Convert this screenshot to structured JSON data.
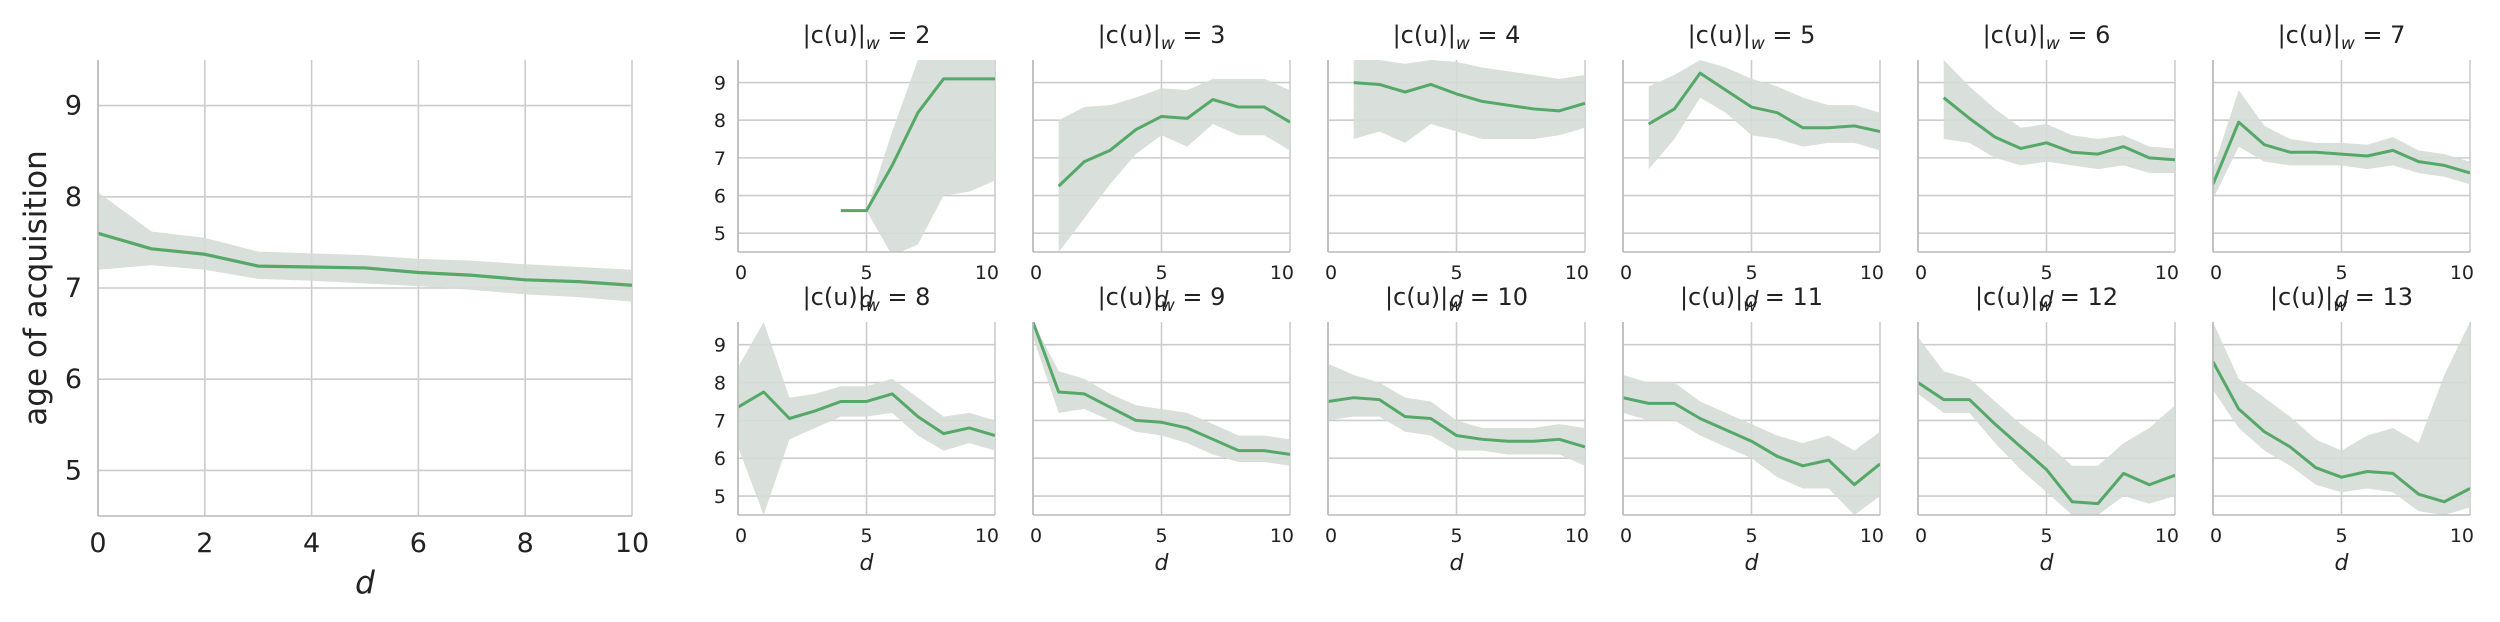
{
  "colors": {
    "line": "#55a868",
    "band": "#d5dbd6",
    "grid": "#cccccc",
    "spine": "#bbbbbb",
    "text": "#222222"
  },
  "chart_data": [
    {
      "type": "line",
      "panel": "overall",
      "x": [
        0,
        1,
        2,
        3,
        4,
        5,
        6,
        7,
        8,
        9,
        10
      ],
      "y": [
        7.6,
        7.43,
        7.37,
        7.24,
        7.23,
        7.22,
        7.17,
        7.14,
        7.09,
        7.07,
        7.03
      ],
      "lower": [
        7.2,
        7.25,
        7.2,
        7.1,
        7.08,
        7.05,
        7.02,
        6.98,
        6.93,
        6.9,
        6.85
      ],
      "upper": [
        8.05,
        7.62,
        7.55,
        7.4,
        7.38,
        7.36,
        7.32,
        7.3,
        7.26,
        7.23,
        7.2
      ],
      "xlabel": "d",
      "ylabel": "age of acquisition",
      "xlim": [
        0,
        10
      ],
      "ylim": [
        4.5,
        9.5
      ],
      "xticks": [
        "0",
        "2",
        "4",
        "6",
        "8",
        "10"
      ],
      "yticks": [
        "5",
        "6",
        "7",
        "8",
        "9"
      ],
      "grid": true
    },
    {
      "type": "line",
      "panel": "small",
      "title": "|c(u)|_w = 2",
      "x": [
        4,
        5,
        6,
        7,
        8,
        9,
        10
      ],
      "y": [
        5.6,
        5.6,
        6.8,
        8.2,
        9.1,
        9.1,
        9.1
      ],
      "lower": [
        5.6,
        5.6,
        4.4,
        4.7,
        6.0,
        6.1,
        6.4
      ],
      "upper": [
        5.6,
        5.6,
        7.7,
        9.6,
        9.6,
        9.6,
        9.6
      ],
      "xlabel": "d",
      "xlim": [
        0,
        10
      ],
      "ylim": [
        4.5,
        9.6
      ],
      "xticks": [
        "0",
        "5",
        "10"
      ],
      "yticks": [
        "5",
        "6",
        "7",
        "8",
        "9"
      ]
    },
    {
      "type": "line",
      "panel": "small",
      "title": "|c(u)|_w = 3",
      "x": [
        1,
        2,
        3,
        4,
        5,
        6,
        7,
        8,
        9,
        10
      ],
      "y": [
        6.25,
        6.9,
        7.2,
        7.75,
        8.1,
        8.05,
        8.55,
        8.35,
        8.35,
        7.95
      ],
      "lower": [
        4.5,
        5.4,
        6.3,
        7.1,
        7.6,
        7.3,
        7.9,
        7.6,
        7.6,
        7.2
      ],
      "upper": [
        8.0,
        8.35,
        8.4,
        8.6,
        8.85,
        8.8,
        9.1,
        9.1,
        9.1,
        8.8
      ],
      "xlabel": "d",
      "xlim": [
        0,
        10
      ],
      "ylim": [
        4.5,
        9.6
      ],
      "xticks": [
        "0",
        "5",
        "10"
      ],
      "yticks": [
        "5",
        "6",
        "7",
        "8",
        "9"
      ]
    },
    {
      "type": "line",
      "panel": "small",
      "title": "|c(u)|_w = 4",
      "x": [
        1,
        2,
        3,
        4,
        5,
        6,
        7,
        8,
        9,
        10
      ],
      "y": [
        9.0,
        8.95,
        8.75,
        8.95,
        8.7,
        8.5,
        8.4,
        8.3,
        8.25,
        8.45
      ],
      "lower": [
        7.5,
        7.7,
        7.4,
        7.9,
        7.7,
        7.5,
        7.5,
        7.5,
        7.6,
        7.8
      ],
      "upper": [
        9.6,
        9.6,
        9.5,
        9.6,
        9.55,
        9.4,
        9.3,
        9.2,
        9.1,
        9.2
      ],
      "xlabel": "d",
      "xlim": [
        0,
        10
      ],
      "ylim": [
        4.5,
        9.6
      ],
      "xticks": [
        "0",
        "5",
        "10"
      ],
      "yticks": [
        "5",
        "6",
        "7",
        "8",
        "9"
      ]
    },
    {
      "type": "line",
      "panel": "small",
      "title": "|c(u)|_w = 5",
      "x": [
        1,
        2,
        3,
        4,
        5,
        6,
        7,
        8,
        9,
        10
      ],
      "y": [
        7.9,
        8.3,
        9.25,
        8.8,
        8.35,
        8.2,
        7.8,
        7.8,
        7.85,
        7.7
      ],
      "lower": [
        6.7,
        7.5,
        8.6,
        8.2,
        7.6,
        7.5,
        7.3,
        7.4,
        7.4,
        7.2
      ],
      "upper": [
        8.9,
        9.2,
        9.6,
        9.4,
        9.1,
        8.9,
        8.6,
        8.4,
        8.4,
        8.2
      ],
      "xlabel": "d",
      "xlim": [
        0,
        10
      ],
      "ylim": [
        4.5,
        9.6
      ],
      "xticks": [
        "0",
        "5",
        "10"
      ],
      "yticks": [
        "5",
        "6",
        "7",
        "8",
        "9"
      ]
    },
    {
      "type": "line",
      "panel": "small",
      "title": "|c(u)|_w = 6",
      "x": [
        1,
        2,
        3,
        4,
        5,
        6,
        7,
        8,
        9,
        10
      ],
      "y": [
        8.6,
        8.05,
        7.55,
        7.25,
        7.4,
        7.15,
        7.1,
        7.3,
        7.0,
        6.95
      ],
      "lower": [
        7.5,
        7.4,
        7.0,
        6.8,
        6.9,
        6.8,
        6.7,
        6.8,
        6.6,
        6.6
      ],
      "upper": [
        9.6,
        8.9,
        8.3,
        7.8,
        7.9,
        7.6,
        7.5,
        7.6,
        7.3,
        7.25
      ],
      "xlabel": "d",
      "xlim": [
        0,
        10
      ],
      "ylim": [
        4.5,
        9.6
      ],
      "xticks": [
        "0",
        "5",
        "10"
      ],
      "yticks": [
        "5",
        "6",
        "7",
        "8",
        "9"
      ]
    },
    {
      "type": "line",
      "panel": "small",
      "title": "|c(u)|_w = 7",
      "x": [
        0,
        1,
        2,
        3,
        4,
        5,
        6,
        7,
        8,
        9,
        10
      ],
      "y": [
        6.3,
        7.95,
        7.35,
        7.15,
        7.15,
        7.1,
        7.05,
        7.2,
        6.9,
        6.8,
        6.6
      ],
      "lower": [
        5.9,
        7.3,
        6.9,
        6.8,
        6.8,
        6.8,
        6.7,
        6.8,
        6.6,
        6.5,
        6.3
      ],
      "upper": [
        6.7,
        8.8,
        7.85,
        7.5,
        7.4,
        7.4,
        7.35,
        7.55,
        7.2,
        7.1,
        6.9
      ],
      "xlabel": "d",
      "xlim": [
        0,
        10
      ],
      "ylim": [
        4.5,
        9.6
      ],
      "xticks": [
        "0",
        "5",
        "10"
      ],
      "yticks": [
        "5",
        "6",
        "7",
        "8",
        "9"
      ]
    },
    {
      "type": "line",
      "panel": "small",
      "title": "|c(u)|_w = 8",
      "x": [
        0,
        1,
        2,
        3,
        4,
        5,
        6,
        7,
        8,
        9,
        10
      ],
      "y": [
        7.35,
        7.75,
        7.05,
        7.25,
        7.5,
        7.5,
        7.7,
        7.1,
        6.65,
        6.8,
        6.6
      ],
      "lower": [
        6.3,
        4.5,
        6.5,
        6.8,
        7.1,
        7.1,
        7.2,
        6.6,
        6.2,
        6.4,
        6.2
      ],
      "upper": [
        8.4,
        9.6,
        7.6,
        7.7,
        7.9,
        7.9,
        8.1,
        7.6,
        7.1,
        7.2,
        7.0
      ],
      "xlabel": "d",
      "xlim": [
        0,
        10
      ],
      "ylim": [
        4.5,
        9.6
      ],
      "xticks": [
        "0",
        "5",
        "10"
      ],
      "yticks": [
        "5",
        "6",
        "7",
        "8",
        "9"
      ]
    },
    {
      "type": "line",
      "panel": "small",
      "title": "|c(u)|_w = 9",
      "x": [
        0,
        1,
        2,
        3,
        4,
        5,
        6,
        7,
        8,
        9,
        10
      ],
      "y": [
        9.6,
        7.75,
        7.7,
        7.35,
        7.0,
        6.95,
        6.8,
        6.5,
        6.2,
        6.2,
        6.1
      ],
      "lower": [
        9.2,
        7.2,
        7.3,
        7.0,
        6.7,
        6.6,
        6.4,
        6.1,
        5.9,
        5.9,
        5.8
      ],
      "upper": [
        9.6,
        8.3,
        8.1,
        7.7,
        7.4,
        7.3,
        7.2,
        6.9,
        6.6,
        6.6,
        6.5
      ],
      "xlabel": "d",
      "xlim": [
        0,
        10
      ],
      "ylim": [
        4.5,
        9.6
      ],
      "xticks": [
        "0",
        "5",
        "10"
      ],
      "yticks": [
        "5",
        "6",
        "7",
        "8",
        "9"
      ]
    },
    {
      "type": "line",
      "panel": "small",
      "title": "|c(u)|_w = 10",
      "x": [
        0,
        1,
        2,
        3,
        4,
        5,
        6,
        7,
        8,
        9,
        10
      ],
      "y": [
        7.5,
        7.6,
        7.55,
        7.1,
        7.05,
        6.6,
        6.5,
        6.45,
        6.45,
        6.5,
        6.3
      ],
      "lower": [
        7.0,
        7.1,
        7.1,
        6.7,
        6.6,
        6.2,
        6.2,
        6.1,
        6.1,
        6.1,
        5.8
      ],
      "upper": [
        8.5,
        8.2,
        8.0,
        7.6,
        7.5,
        7.0,
        6.8,
        6.8,
        6.8,
        6.9,
        6.8
      ],
      "xlabel": "d",
      "xlim": [
        0,
        10
      ],
      "ylim": [
        4.5,
        9.6
      ],
      "xticks": [
        "0",
        "5",
        "10"
      ],
      "yticks": [
        "5",
        "6",
        "7",
        "8",
        "9"
      ]
    },
    {
      "type": "line",
      "panel": "small",
      "title": "|c(u)|_w = 11",
      "x": [
        0,
        1,
        2,
        3,
        4,
        5,
        6,
        7,
        8,
        9,
        10
      ],
      "y": [
        7.6,
        7.45,
        7.45,
        7.05,
        6.75,
        6.45,
        6.05,
        5.8,
        5.95,
        5.3,
        5.85
      ],
      "lower": [
        7.2,
        7.0,
        7.0,
        6.6,
        6.3,
        6.0,
        5.5,
        5.2,
        5.2,
        4.5,
        5.0
      ],
      "upper": [
        8.2,
        8.0,
        8.0,
        7.5,
        7.2,
        6.9,
        6.6,
        6.4,
        6.6,
        6.2,
        6.7
      ],
      "xlabel": "d",
      "xlim": [
        0,
        10
      ],
      "ylim": [
        4.5,
        9.6
      ],
      "xticks": [
        "0",
        "5",
        "10"
      ],
      "yticks": [
        "5",
        "6",
        "7",
        "8",
        "9"
      ]
    },
    {
      "type": "line",
      "panel": "small",
      "title": "|c(u)|_w = 12",
      "x": [
        0,
        1,
        2,
        3,
        4,
        5,
        6,
        7,
        8,
        9,
        10
      ],
      "y": [
        8.0,
        7.55,
        7.55,
        6.9,
        6.3,
        5.7,
        4.85,
        4.8,
        5.6,
        5.3,
        5.55
      ],
      "lower": [
        7.7,
        7.2,
        7.2,
        6.4,
        5.7,
        5.1,
        4.5,
        4.5,
        5.0,
        4.8,
        5.0
      ],
      "upper": [
        9.2,
        8.3,
        8.1,
        7.5,
        6.9,
        6.4,
        5.8,
        5.8,
        6.4,
        6.8,
        7.4
      ],
      "xlabel": "d",
      "xlim": [
        0,
        10
      ],
      "ylim": [
        4.5,
        9.6
      ],
      "xticks": [
        "0",
        "5",
        "10"
      ],
      "yticks": [
        "5",
        "6",
        "7",
        "8",
        "9"
      ]
    },
    {
      "type": "line",
      "panel": "small",
      "title": "|c(u)|_w = 13",
      "x": [
        0,
        1,
        2,
        3,
        4,
        5,
        6,
        7,
        8,
        9,
        10
      ],
      "y": [
        8.55,
        7.3,
        6.7,
        6.3,
        5.75,
        5.5,
        5.65,
        5.6,
        5.05,
        4.85,
        5.2
      ],
      "lower": [
        7.8,
        6.8,
        6.2,
        5.8,
        5.3,
        5.1,
        5.2,
        5.1,
        4.6,
        4.5,
        4.7
      ],
      "upper": [
        9.6,
        8.1,
        7.6,
        7.1,
        6.5,
        6.2,
        6.6,
        6.8,
        6.4,
        8.2,
        9.6
      ],
      "xlabel": "d",
      "xlim": [
        0,
        10
      ],
      "ylim": [
        4.5,
        9.6
      ],
      "xticks": [
        "0",
        "5",
        "10"
      ],
      "yticks": [
        "5",
        "6",
        "7",
        "8",
        "9"
      ]
    }
  ]
}
